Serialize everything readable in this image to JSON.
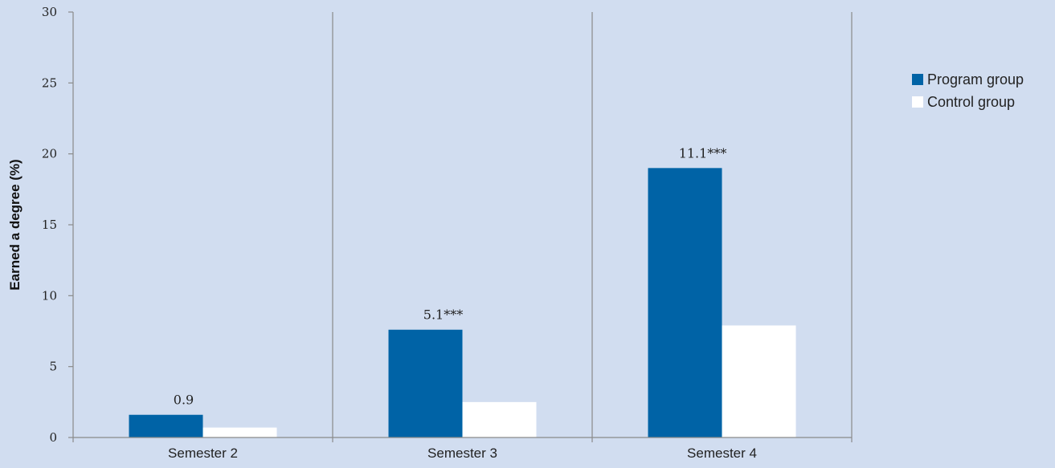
{
  "chart_data": {
    "type": "bar",
    "categories": [
      "Semester 2",
      "Semester 3",
      "Semester 4"
    ],
    "series": [
      {
        "name": "Program group",
        "values": [
          1.6,
          7.6,
          19.0
        ],
        "color": "#0063a6"
      },
      {
        "name": "Control group",
        "values": [
          0.7,
          2.5,
          7.9
        ],
        "color": "#ffffff"
      }
    ],
    "data_labels": [
      "0.9",
      "5.1***",
      "11.1***"
    ],
    "ylabel": "Earned a degree (%)",
    "ylim": [
      0,
      30
    ],
    "yticks": [
      "0",
      "5",
      "10",
      "15",
      "20",
      "25",
      "30"
    ],
    "grid": "vertical category separators",
    "legend_position": "right"
  }
}
